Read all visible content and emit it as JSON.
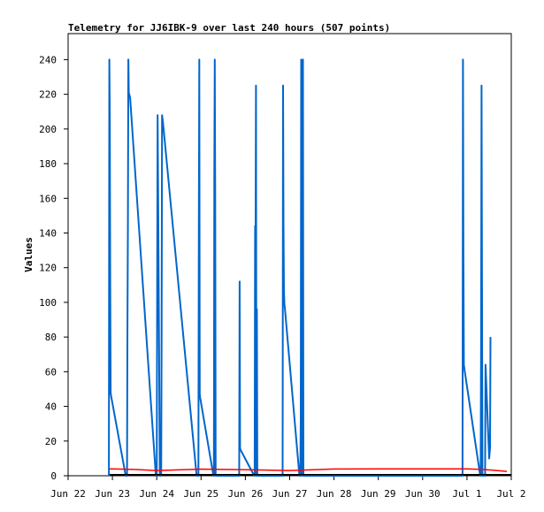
{
  "chart_data": {
    "type": "line",
    "title": "Telemetry for JJ6IBK-9 over last 240 hours (507 points)",
    "xlabel": "",
    "ylabel": "Values",
    "ylim": [
      0,
      255
    ],
    "yticks": [
      0,
      20,
      40,
      60,
      80,
      100,
      120,
      140,
      160,
      180,
      200,
      220,
      240
    ],
    "xticks": [
      "Jun 22",
      "Jun 23",
      "Jun 24",
      "Jun 25",
      "Jun 26",
      "Jun 27",
      "Jun 28",
      "Jun 29",
      "Jun 30",
      "Jul 1",
      "Jul 2"
    ],
    "xlim_days": [
      0,
      10
    ],
    "grid": false,
    "legend": "none",
    "series": [
      {
        "color": "#0066cc",
        "x": [
          0.92,
          0.93,
          0.94,
          0.95,
          0.96,
          0.97,
          1.3,
          1.33,
          1.34,
          1.35,
          1.36,
          1.37,
          1.4,
          1.98,
          2.0,
          2.01,
          2.02,
          2.07,
          2.1,
          2.11,
          2.12,
          2.13,
          2.14,
          2.9,
          2.94,
          2.95,
          2.96,
          2.97,
          2.98,
          3.28,
          3.29,
          3.3,
          3.31,
          3.32,
          3.33,
          3.34,
          3.35,
          3.36,
          3.86,
          3.87,
          3.88,
          3.89,
          4.2,
          4.21,
          4.22,
          4.23,
          4.24,
          4.25,
          4.26,
          4.27,
          4.84,
          4.85,
          4.86,
          4.87,
          4.88,
          4.89,
          5.22,
          5.24,
          5.25,
          5.26,
          5.28,
          5.29,
          5.3,
          5.31,
          5.32,
          5.33,
          8.9,
          8.91,
          8.92,
          8.93,
          8.94,
          9.3,
          9.31,
          9.32,
          9.33,
          9.34,
          9.35,
          9.36,
          9.4,
          9.41,
          9.42,
          9.5,
          9.52,
          9.53
        ],
        "y": [
          0,
          240,
          208,
          112,
          48,
          46,
          0,
          0,
          88,
          144,
          240,
          221,
          218,
          0,
          0,
          112,
          208,
          0,
          0,
          80,
          208,
          206,
          204,
          0,
          0,
          144,
          240,
          47,
          45,
          0,
          0,
          176,
          240,
          160,
          0,
          0,
          0,
          0,
          0,
          112,
          16,
          15,
          0,
          0,
          144,
          128,
          225,
          0,
          96,
          0,
          0,
          225,
          144,
          107,
          99,
          97,
          0,
          0,
          32,
          240,
          0,
          32,
          240,
          0,
          0,
          0,
          0,
          240,
          128,
          64,
          62,
          0,
          0,
          80,
          225,
          112,
          0,
          0,
          0,
          0,
          64,
          10,
          16,
          80
        ]
      },
      {
        "color": "#ff0000",
        "x": [
          0.94,
          1.5,
          2.0,
          3.0,
          4.0,
          5.0,
          6.0,
          7.0,
          8.0,
          9.0,
          9.3,
          9.6,
          9.9
        ],
        "y": [
          4.0,
          3.6,
          3.0,
          3.8,
          3.5,
          3.0,
          3.9,
          4.0,
          4.0,
          4.0,
          3.7,
          3.2,
          2.5
        ]
      },
      {
        "color": "#000000",
        "x": [
          0.94,
          10.0
        ],
        "y": [
          0.6,
          0.6
        ]
      }
    ]
  }
}
